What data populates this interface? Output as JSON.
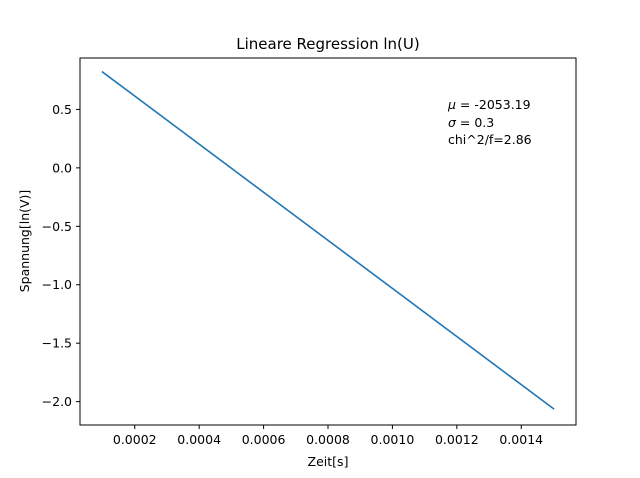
{
  "chart_data": {
    "type": "line",
    "title": "Lineare Regression ln(U)",
    "xlabel": "Zeit[s]",
    "ylabel": "Spannung[ln(V)]",
    "xlim": [
      3e-05,
      0.00157
    ],
    "ylim": [
      -2.2,
      0.94
    ],
    "x_ticks": [
      {
        "value": 0.0002,
        "label": "0.0002"
      },
      {
        "value": 0.0004,
        "label": "0.0004"
      },
      {
        "value": 0.0006,
        "label": "0.0006"
      },
      {
        "value": 0.0008,
        "label": "0.0008"
      },
      {
        "value": 0.001,
        "label": "0.0010"
      },
      {
        "value": 0.0012,
        "label": "0.0012"
      },
      {
        "value": 0.0014,
        "label": "0.0014"
      }
    ],
    "y_ticks": [
      {
        "value": 0.5,
        "label": "0.5"
      },
      {
        "value": 0.0,
        "label": "0.0"
      },
      {
        "value": -0.5,
        "label": "−0.5"
      },
      {
        "value": -1.0,
        "label": "−1.0"
      },
      {
        "value": -1.5,
        "label": "−1.5"
      },
      {
        "value": -2.0,
        "label": "−2.0"
      }
    ],
    "grid": false,
    "series": [
      {
        "name": "regression",
        "color": "#1f77b4",
        "x": [
          0.0001,
          0.0015
        ],
        "y": [
          0.82,
          -2.06
        ]
      }
    ],
    "annotation": {
      "mu_symbol": "μ",
      "mu_value": " = -2053.19",
      "sigma_symbol": "σ",
      "sigma_value": " = 0.3",
      "chi_text": "chi^2/f=2.86"
    }
  }
}
